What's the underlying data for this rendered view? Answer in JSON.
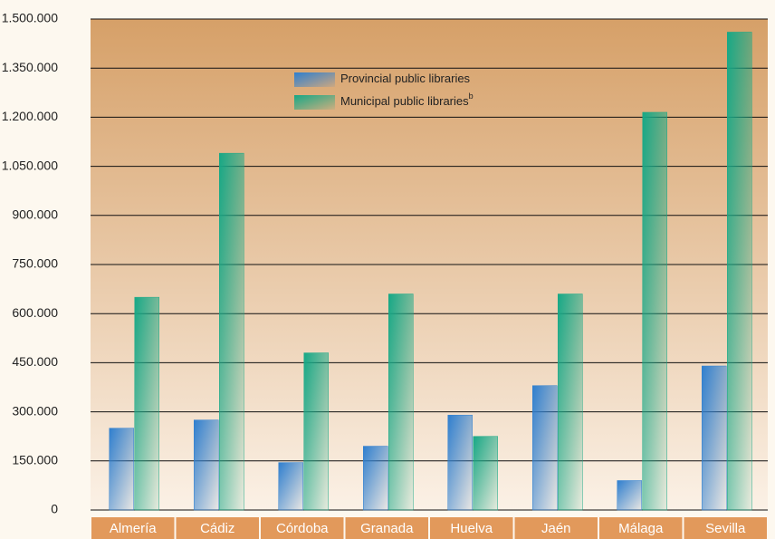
{
  "chart_data": {
    "type": "bar",
    "categories": [
      "Almería",
      "Cádiz",
      "Córdoba",
      "Granada",
      "Huelva",
      "Jaén",
      "Málaga",
      "Sevilla"
    ],
    "series": [
      {
        "name": "Provincial public libraries",
        "color": "#2f7fcf",
        "values": [
          250000,
          275000,
          145000,
          195000,
          290000,
          380000,
          90000,
          440000
        ]
      },
      {
        "name": "Municipal public libraries",
        "footnote_marker": "b",
        "color": "#17a886",
        "values": [
          650000,
          1090000,
          480000,
          660000,
          225000,
          660000,
          1215000,
          1460000
        ]
      }
    ],
    "ylim": [
      0,
      1500000
    ],
    "yticks": [
      0,
      {
        "value": 150000,
        "label": "150.000"
      },
      {
        "value": 300000,
        "label": "300.000"
      },
      {
        "value": 450000,
        "label": "450.000"
      },
      {
        "value": 600000,
        "label": "600.000"
      },
      {
        "value": 750000,
        "label": "750.000"
      },
      {
        "value": 900000,
        "label": "900.000"
      },
      {
        "value": 1050000,
        "label": "1.050.000"
      },
      {
        "value": 1200000,
        "label": "1.200.000"
      },
      {
        "value": 1350000,
        "label": "1.350.000"
      },
      {
        "value": 1500000,
        "label": "1.500.000"
      }
    ],
    "grid": true
  }
}
